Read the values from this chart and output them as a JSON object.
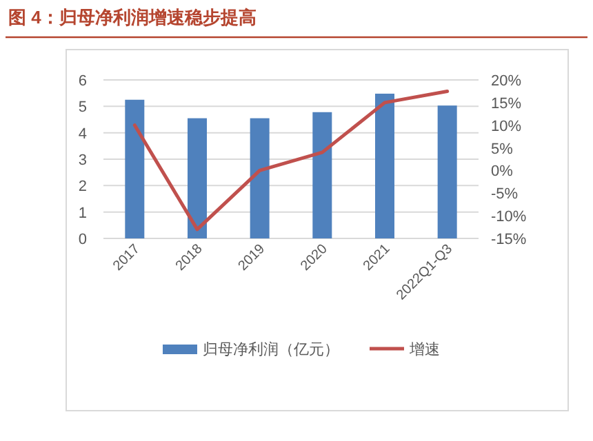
{
  "chart_data": {
    "type": "bar",
    "title": "图 4：归母净利润增速稳步提高",
    "categories": [
      "2017",
      "2018",
      "2019",
      "2020",
      "2021",
      "2022Q1-Q3"
    ],
    "series": [
      {
        "name": "归母净利润（亿元）",
        "color": "#4f81bd",
        "values": [
          5.25,
          4.55,
          4.55,
          4.78,
          5.48,
          5.03
        ]
      },
      {
        "name": "增速",
        "type": "line",
        "axis": "y2",
        "color": "#c0504d",
        "values": [
          10,
          -13,
          0,
          4,
          15,
          17.5
        ]
      }
    ],
    "ylim": [
      0,
      6
    ],
    "yticks": [
      0,
      1,
      2,
      3,
      4,
      5,
      6
    ],
    "y2lim": [
      -15,
      20
    ],
    "y2ticks": [
      {
        "value": -15,
        "label": "-15%"
      },
      {
        "value": -10,
        "label": "-10%"
      },
      {
        "value": -5,
        "label": "-5%"
      },
      {
        "value": 0,
        "label": "0%"
      },
      {
        "value": 5,
        "label": "5%"
      },
      {
        "value": 10,
        "label": "10%"
      },
      {
        "value": 15,
        "label": "15%"
      },
      {
        "value": 20,
        "label": "20%"
      }
    ],
    "grid": "y",
    "legend": "bottom"
  }
}
